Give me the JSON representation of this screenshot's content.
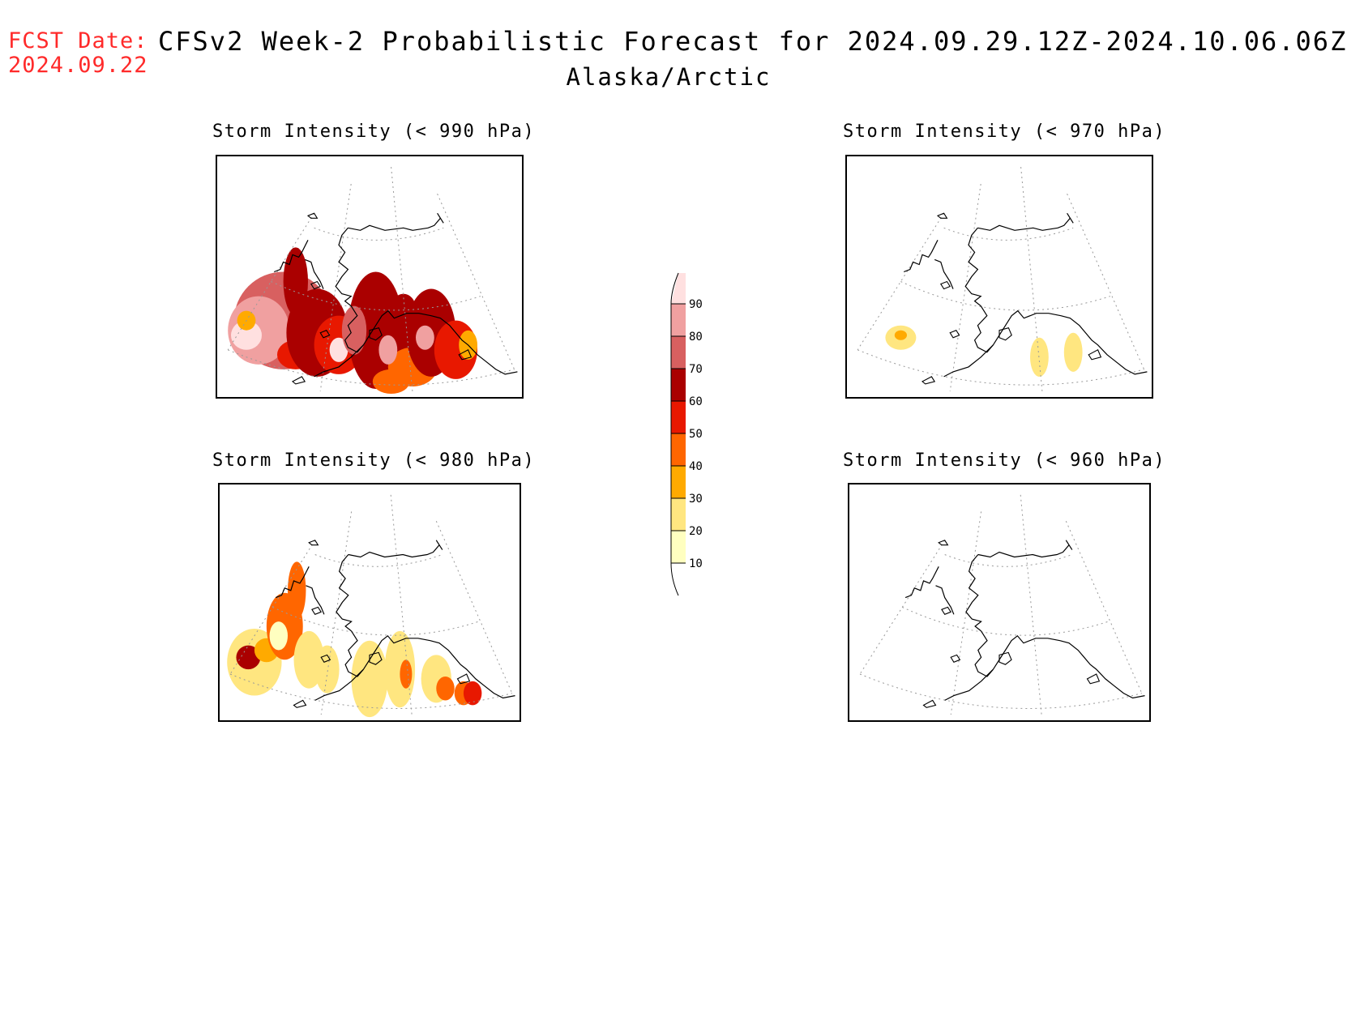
{
  "header": {
    "fcst_label": "FCST Date:",
    "fcst_date": "2024.09.22",
    "title": "CFSv2 Week-2 Probabilistic Forecast for 2024.09.29.12Z-2024.10.06.06Z",
    "subtitle": "Alaska/Arctic"
  },
  "panels": [
    {
      "id": "p990",
      "title": "Storm Intensity (< 990 hPa)",
      "level": "high"
    },
    {
      "id": "p970",
      "title": "Storm Intensity (< 970 hPa)",
      "level": "low"
    },
    {
      "id": "p980",
      "title": "Storm Intensity (< 980 hPa)",
      "level": "medium"
    },
    {
      "id": "p960",
      "title": "Storm Intensity (< 960 hPa)",
      "level": "none"
    }
  ],
  "colorbar": {
    "ticks": [
      "10",
      "20",
      "30",
      "40",
      "50",
      "60",
      "70",
      "80",
      "90"
    ],
    "colors": [
      "#ffffc0",
      "#ffe680",
      "#ffaa00",
      "#ff6600",
      "#e81800",
      "#aa0000",
      "#d86060",
      "#f0a0a0",
      "#ffe0e0"
    ]
  }
}
